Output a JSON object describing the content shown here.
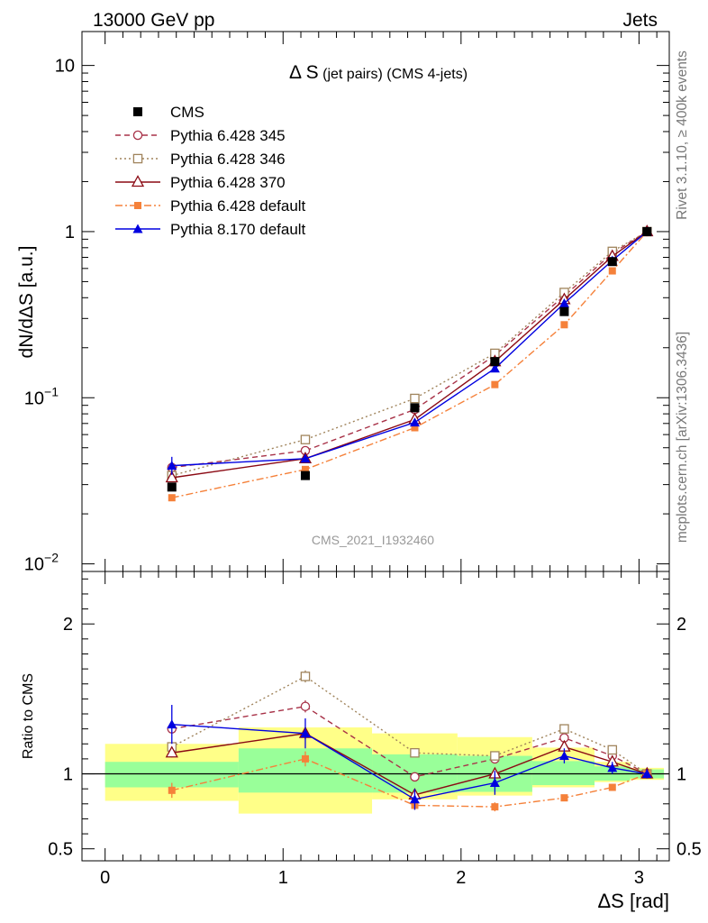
{
  "header": {
    "left": "13000 GeV pp",
    "right": "Jets"
  },
  "side_labels": {
    "rivet": "Rivet 3.1.10, ≥ 400k events",
    "mcplots": "mcplots.cern.ch [arXiv:1306.3436]"
  },
  "watermark": "CMS_2021_I1932460",
  "chart_data": [
    {
      "type": "line",
      "title_main": "Δ S",
      "title_small": " (jet pairs) (CMS 4-jets)",
      "ylabel": "dN/dΔS [a.u.]",
      "yscale": "log",
      "ylim": [
        0.009,
        16
      ],
      "xlim": [
        -0.13,
        3.17
      ],
      "y_ticks": [
        {
          "value": 0.01,
          "base": "10",
          "exp": "−2"
        },
        {
          "value": 0.1,
          "base": "10",
          "exp": "−1"
        },
        {
          "value": 1,
          "base": "1",
          "exp": ""
        },
        {
          "value": 10,
          "base": "10",
          "exp": ""
        }
      ],
      "x": [
        0.375,
        1.125,
        1.74,
        2.19,
        2.58,
        2.85,
        3.045
      ],
      "data": {
        "name": "CMS",
        "values": [
          0.029,
          0.034,
          0.087,
          0.165,
          0.33,
          0.66,
          1.0
        ]
      },
      "series": [
        {
          "name": "Pythia 6.428 345",
          "color": "#a83248",
          "dash": "6,4",
          "marker": "open-circle",
          "values": [
            0.038,
            0.048,
            0.085,
            0.18,
            0.41,
            0.74,
            1.0
          ]
        },
        {
          "name": "Pythia 6.428 346",
          "color": "#a0845c",
          "dash": "2,3",
          "marker": "open-square",
          "values": [
            0.034,
            0.056,
            0.099,
            0.185,
            0.43,
            0.76,
            1.0
          ]
        },
        {
          "name": "Pythia 6.428 370",
          "color": "#8b0a14",
          "dash": "",
          "marker": "open-triangle",
          "values": [
            0.033,
            0.043,
            0.074,
            0.165,
            0.39,
            0.71,
            1.0
          ]
        },
        {
          "name": "Pythia 6.428 default",
          "color": "#f5813a",
          "dash": "8,3,2,3",
          "marker": "filled-square",
          "values": [
            0.025,
            0.037,
            0.066,
            0.12,
            0.275,
            0.58,
            1.0
          ]
        },
        {
          "name": "Pythia 8.170 default",
          "color": "#0000e0",
          "dash": "",
          "marker": "filled-triangle",
          "values": [
            0.039,
            0.043,
            0.071,
            0.15,
            0.37,
            0.67,
            1.0
          ]
        }
      ]
    },
    {
      "type": "line",
      "ylabel": "Ratio to CMS",
      "xlabel": "ΔS [rad]",
      "ylim": [
        0.42,
        2.35
      ],
      "y_ticks": [
        0.5,
        1,
        2
      ],
      "x_ticks": [
        0,
        1,
        2,
        3
      ],
      "bins": [
        [
          0,
          0.75
        ],
        [
          0.75,
          1.5
        ],
        [
          1.5,
          1.98
        ],
        [
          1.98,
          2.4
        ],
        [
          2.4,
          2.75
        ],
        [
          2.75,
          2.95
        ],
        [
          2.95,
          3.14
        ]
      ],
      "band_stat": [
        [
          0.91,
          1.08
        ],
        [
          0.875,
          1.17
        ],
        [
          0.875,
          1.13
        ],
        [
          0.88,
          1.12
        ],
        [
          0.925,
          1.085
        ],
        [
          0.955,
          1.05
        ],
        [
          0.97,
          1.03
        ]
      ],
      "band_total": [
        [
          0.82,
          1.2
        ],
        [
          0.735,
          1.31
        ],
        [
          0.83,
          1.27
        ],
        [
          0.855,
          1.245
        ],
        [
          0.91,
          1.175
        ],
        [
          0.945,
          1.08
        ],
        [
          0.96,
          1.04
        ]
      ],
      "x": [
        0.375,
        1.125,
        1.74,
        2.19,
        2.58,
        2.85,
        3.045
      ],
      "series": [
        {
          "name": "Pythia 6.428 345",
          "values": [
            1.3,
            1.45,
            0.98,
            1.1,
            1.24,
            1.12,
            1.0
          ],
          "errors": [
            0.03,
            0.04,
            0.03,
            0.02,
            0.02,
            0.02,
            0.01
          ]
        },
        {
          "name": "Pythia 6.428 346",
          "values": [
            1.18,
            1.65,
            1.14,
            1.12,
            1.3,
            1.16,
            1.0
          ],
          "errors": [
            0.03,
            0.04,
            0.03,
            0.02,
            0.02,
            0.02,
            0.01
          ]
        },
        {
          "name": "Pythia 6.428 370",
          "values": [
            1.14,
            1.27,
            0.86,
            1.0,
            1.18,
            1.08,
            1.0
          ],
          "errors": [
            0.03,
            0.04,
            0.03,
            0.02,
            0.02,
            0.02,
            0.01
          ]
        },
        {
          "name": "Pythia 6.428 default",
          "values": [
            0.89,
            1.1,
            0.79,
            0.78,
            0.84,
            0.91,
            1.0
          ],
          "errors": [
            0.05,
            0.05,
            0.03,
            0.03,
            0.015,
            0.015,
            0.01
          ]
        },
        {
          "name": "Pythia 8.170 default",
          "values": [
            1.33,
            1.27,
            0.83,
            0.94,
            1.12,
            1.04,
            1.0
          ],
          "errors": [
            0.13,
            0.1,
            0.07,
            0.08,
            0.05,
            0.04,
            0.03
          ]
        }
      ]
    }
  ]
}
